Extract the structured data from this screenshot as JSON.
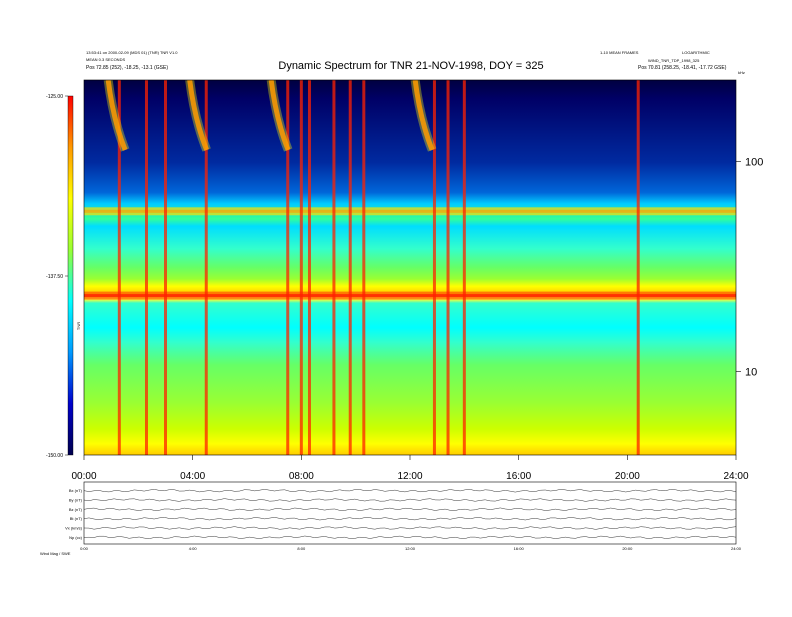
{
  "chart_data": {
    "type": "heatmap",
    "title": "Dynamic Spectrum for TNR 21-NOV-1998, DOY = 325",
    "header_left": [
      "13:53:41 on 2000-02-09 (MDS 01) (TNR) TNR V1.0",
      "MEAN 0.3 SECONDS",
      "Pos 72.85 (252), -18.25, -13.1 (GSE)"
    ],
    "header_right": [
      "1-10 MEAN FRAMES",
      "LOGARITHMIC",
      "WIND_TNR_TDP_1998_325",
      "Pos 70.81 (258.25, -18.41, -17.72 GSE)"
    ],
    "colorbar": {
      "label": "TNR",
      "ticks": [
        "-125.00",
        "-137.50",
        "-150.00"
      ],
      "colors": [
        "#ff0000",
        "#ff9900",
        "#ffff00",
        "#99ff33",
        "#00ffff",
        "#0099ff",
        "#0000cc",
        "#00004d"
      ]
    },
    "x_ticks": [
      "00:00",
      "04:00",
      "08:00",
      "12:00",
      "16:00",
      "20:00",
      "24:00"
    ],
    "xlim": [
      0,
      24
    ],
    "y_axis": {
      "scale": "log",
      "unit": "kHz",
      "ticks": [
        "100",
        "10"
      ],
      "ylim": [
        4,
        245
      ]
    },
    "emission_bands_khz": [
      {
        "freq": 58,
        "intensity": "yellow"
      },
      {
        "freq": 23,
        "intensity": "red"
      }
    ],
    "burst_hours": [
      1.3,
      2.3,
      3.0,
      4.5,
      7.5,
      8.0,
      8.3,
      9.2,
      9.8,
      10.3,
      12.9,
      13.4,
      14.0,
      20.4
    ],
    "type_iii_bursts_hours": [
      1.0,
      4.0,
      7.0,
      12.3
    ],
    "lower_panel": {
      "rows": [
        "Bx (nT)",
        "By (nT)",
        "Bz (nT)",
        "Bt (nT)",
        "Vx (km/s)",
        "Np (cc)"
      ],
      "x_ticks": [
        "0:00",
        "4:00",
        "8:00",
        "12:00",
        "16:00",
        "20:00",
        "24:00"
      ],
      "footer": "Wind Mag / SWE"
    }
  }
}
